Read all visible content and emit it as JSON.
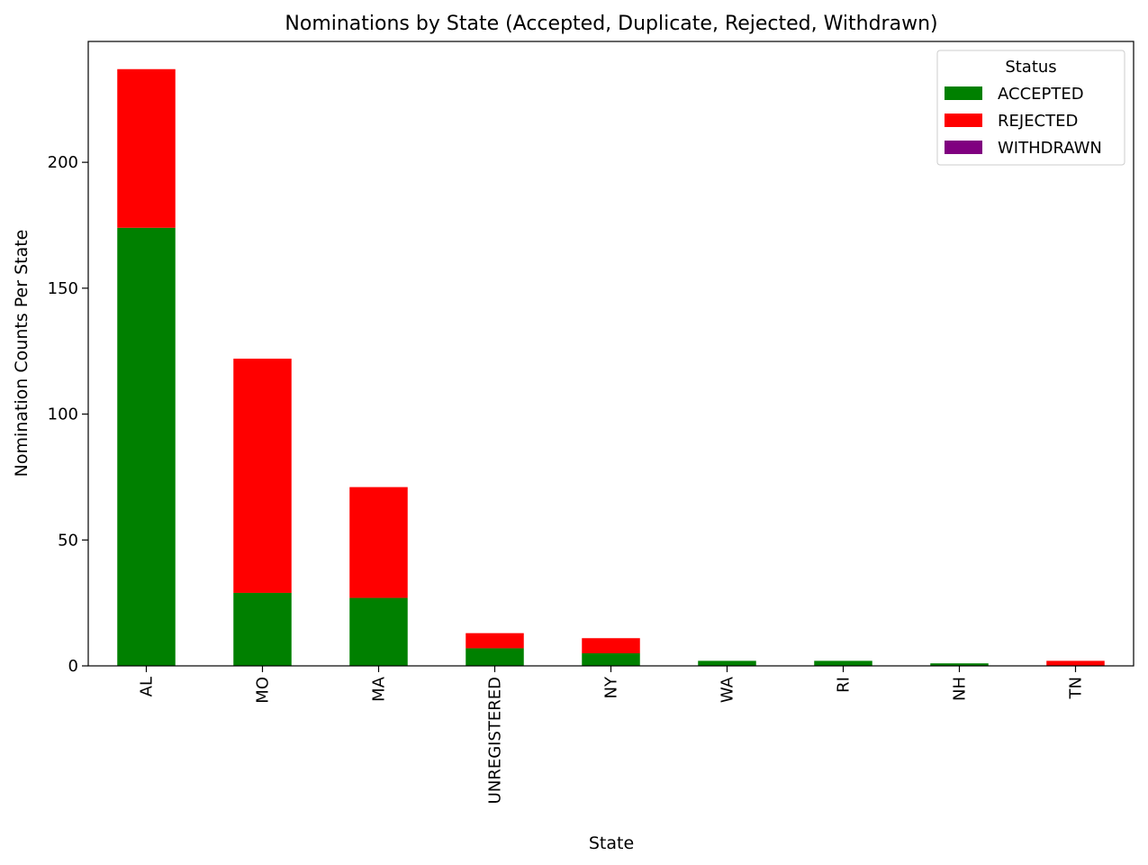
{
  "chart_data": {
    "type": "bar",
    "stacked": true,
    "title": "Nominations by State (Accepted, Duplicate, Rejected, Withdrawn)",
    "xlabel": "State",
    "ylabel": "Nomination Counts Per State",
    "categories": [
      "AL",
      "MO",
      "MA",
      "UNREGISTERED",
      "NY",
      "WA",
      "RI",
      "NH",
      "TN"
    ],
    "series": [
      {
        "name": "ACCEPTED",
        "color": "#008000",
        "values": [
          174,
          29,
          27,
          7,
          5,
          2,
          2,
          1,
          0
        ]
      },
      {
        "name": "REJECTED",
        "color": "#ff0000",
        "values": [
          63,
          93,
          44,
          6,
          6,
          0,
          0,
          0,
          2
        ]
      },
      {
        "name": "WITHDRAWN",
        "color": "#800080",
        "values": [
          0,
          0,
          0,
          0,
          0,
          0,
          0,
          0,
          0
        ]
      }
    ],
    "ylim": [
      0,
      248
    ],
    "yticks": [
      0,
      50,
      100,
      150,
      200
    ],
    "legend": {
      "title": "Status",
      "position": "top-right"
    },
    "grid": false
  }
}
